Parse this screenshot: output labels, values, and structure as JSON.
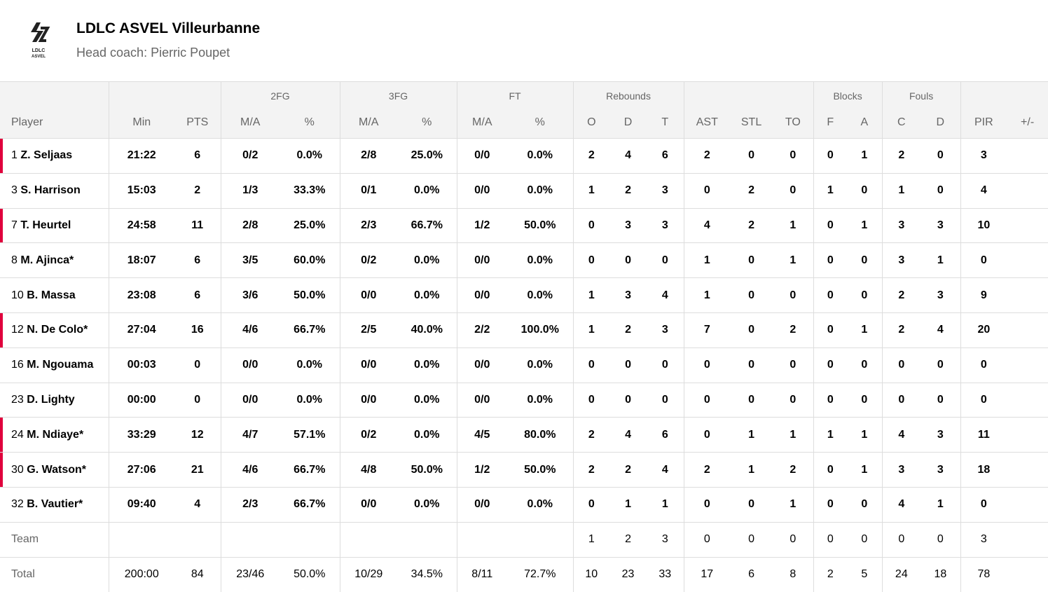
{
  "header": {
    "team": "LDLC ASVEL Villeurbanne",
    "coach": "Head coach: Pierric Poupet",
    "logo_text": "LDLC ASVEL"
  },
  "groups": {
    "fg2": "2FG",
    "fg3": "3FG",
    "ft": "FT",
    "reb": "Rebounds",
    "blk": "Blocks",
    "fouls": "Fouls"
  },
  "columns": [
    "Player",
    "Min",
    "PTS",
    "M/A",
    "%",
    "M/A",
    "%",
    "M/A",
    "%",
    "O",
    "D",
    "T",
    "AST",
    "STL",
    "TO",
    "F",
    "A",
    "C",
    "D",
    "PIR",
    "+/-"
  ],
  "accent": "#e0003c",
  "rows": [
    {
      "num": "1",
      "name": "Z. Seljaas",
      "starter": true,
      "v": [
        "21:22",
        "6",
        "0/2",
        "0.0%",
        "2/8",
        "25.0%",
        "0/0",
        "0.0%",
        "2",
        "4",
        "6",
        "2",
        "0",
        "0",
        "0",
        "1",
        "2",
        "0",
        "3",
        ""
      ]
    },
    {
      "num": "3",
      "name": "S. Harrison",
      "starter": false,
      "v": [
        "15:03",
        "2",
        "1/3",
        "33.3%",
        "0/1",
        "0.0%",
        "0/0",
        "0.0%",
        "1",
        "2",
        "3",
        "0",
        "2",
        "0",
        "1",
        "0",
        "1",
        "0",
        "4",
        ""
      ]
    },
    {
      "num": "7",
      "name": "T. Heurtel",
      "starter": true,
      "v": [
        "24:58",
        "11",
        "2/8",
        "25.0%",
        "2/3",
        "66.7%",
        "1/2",
        "50.0%",
        "0",
        "3",
        "3",
        "4",
        "2",
        "1",
        "0",
        "1",
        "3",
        "3",
        "10",
        ""
      ]
    },
    {
      "num": "8",
      "name": "M. Ajinca*",
      "starter": false,
      "v": [
        "18:07",
        "6",
        "3/5",
        "60.0%",
        "0/2",
        "0.0%",
        "0/0",
        "0.0%",
        "0",
        "0",
        "0",
        "1",
        "0",
        "1",
        "0",
        "0",
        "3",
        "1",
        "0",
        ""
      ]
    },
    {
      "num": "10",
      "name": "B. Massa",
      "starter": false,
      "v": [
        "23:08",
        "6",
        "3/6",
        "50.0%",
        "0/0",
        "0.0%",
        "0/0",
        "0.0%",
        "1",
        "3",
        "4",
        "1",
        "0",
        "0",
        "0",
        "0",
        "2",
        "3",
        "9",
        ""
      ]
    },
    {
      "num": "12",
      "name": "N. De Colo*",
      "starter": true,
      "v": [
        "27:04",
        "16",
        "4/6",
        "66.7%",
        "2/5",
        "40.0%",
        "2/2",
        "100.0%",
        "1",
        "2",
        "3",
        "7",
        "0",
        "2",
        "0",
        "1",
        "2",
        "4",
        "20",
        ""
      ]
    },
    {
      "num": "16",
      "name": "M. Ngouama",
      "starter": false,
      "v": [
        "00:03",
        "0",
        "0/0",
        "0.0%",
        "0/0",
        "0.0%",
        "0/0",
        "0.0%",
        "0",
        "0",
        "0",
        "0",
        "0",
        "0",
        "0",
        "0",
        "0",
        "0",
        "0",
        ""
      ]
    },
    {
      "num": "23",
      "name": "D. Lighty",
      "starter": false,
      "v": [
        "00:00",
        "0",
        "0/0",
        "0.0%",
        "0/0",
        "0.0%",
        "0/0",
        "0.0%",
        "0",
        "0",
        "0",
        "0",
        "0",
        "0",
        "0",
        "0",
        "0",
        "0",
        "0",
        ""
      ]
    },
    {
      "num": "24",
      "name": "M. Ndiaye*",
      "starter": true,
      "v": [
        "33:29",
        "12",
        "4/7",
        "57.1%",
        "0/2",
        "0.0%",
        "4/5",
        "80.0%",
        "2",
        "4",
        "6",
        "0",
        "1",
        "1",
        "1",
        "1",
        "4",
        "3",
        "11",
        ""
      ]
    },
    {
      "num": "30",
      "name": "G. Watson*",
      "starter": true,
      "v": [
        "27:06",
        "21",
        "4/6",
        "66.7%",
        "4/8",
        "50.0%",
        "1/2",
        "50.0%",
        "2",
        "2",
        "4",
        "2",
        "1",
        "2",
        "0",
        "1",
        "3",
        "3",
        "18",
        ""
      ]
    },
    {
      "num": "32",
      "name": "B. Vautier*",
      "starter": false,
      "v": [
        "09:40",
        "4",
        "2/3",
        "66.7%",
        "0/0",
        "0.0%",
        "0/0",
        "0.0%",
        "0",
        "1",
        "1",
        "0",
        "0",
        "1",
        "0",
        "0",
        "4",
        "1",
        "0",
        ""
      ]
    }
  ],
  "team_row": {
    "label": "Team",
    "v": [
      "",
      "",
      "",
      "",
      "",
      "",
      "",
      "",
      "1",
      "2",
      "3",
      "0",
      "0",
      "0",
      "0",
      "0",
      "0",
      "0",
      "3",
      ""
    ]
  },
  "total_row": {
    "label": "Total",
    "v": [
      "200:00",
      "84",
      "23/46",
      "50.0%",
      "10/29",
      "34.5%",
      "8/11",
      "72.7%",
      "10",
      "23",
      "33",
      "17",
      "6",
      "8",
      "2",
      "5",
      "24",
      "18",
      "78",
      ""
    ]
  }
}
